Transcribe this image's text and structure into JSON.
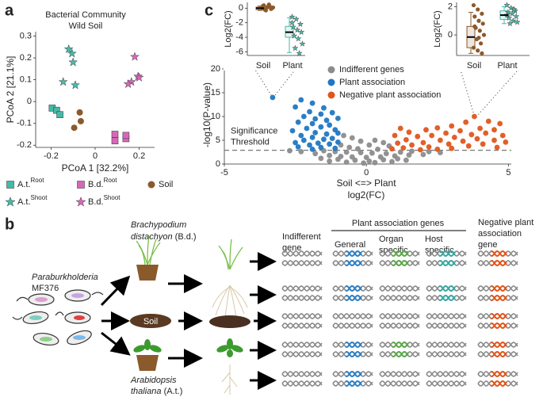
{
  "panel_labels": [
    "a",
    "b",
    "c"
  ],
  "chart_data": [
    {
      "type": "scatter",
      "title": "Bacterial Community",
      "subtitle": "Wild Soil",
      "x_label": "PCoA 1 [32.2%]",
      "y_label": "PCoA 2 [21.1%]",
      "xlim": [
        -0.27,
        0.27
      ],
      "ylim": [
        -0.21,
        0.32
      ],
      "xticks": [
        -0.2,
        0,
        0.2
      ],
      "yticks": [
        -0.2,
        -0.1,
        0,
        0.1,
        0.2,
        0.3
      ],
      "series": [
        {
          "name": "A.t.",
          "name_sup": "Root",
          "marker": "square",
          "color": "#46b9a8",
          "x": [
            -0.195,
            -0.175,
            -0.16
          ],
          "values": [
            -0.03,
            -0.04,
            -0.06
          ]
        },
        {
          "name": "A.t.",
          "name_sup": "Shoot",
          "marker": "star",
          "color": "#46b9a8",
          "x": [
            -0.12,
            -0.105,
            -0.1,
            -0.145,
            -0.09
          ],
          "values": [
            0.24,
            0.22,
            0.18,
            0.09,
            0.075
          ]
        },
        {
          "name": "B.d.",
          "name_sup": "Root",
          "marker": "square",
          "color": "#d966b8",
          "x": [
            0.09,
            0.09,
            0.14,
            0.14
          ],
          "values": [
            -0.15,
            -0.18,
            -0.17,
            -0.155
          ]
        },
        {
          "name": "B.d.",
          "name_sup": "Shoot",
          "marker": "star",
          "color": "#d966b8",
          "x": [
            0.18,
            0.195,
            0.165,
            0.15,
            0.2
          ],
          "values": [
            0.205,
            0.115,
            0.09,
            0.08,
            0.11
          ]
        },
        {
          "name": "Soil",
          "marker": "circle",
          "color": "#8b5a2b",
          "x": [
            -0.07,
            -0.065,
            -0.095
          ],
          "values": [
            -0.05,
            -0.09,
            -0.12
          ]
        }
      ]
    },
    {
      "type": "scatter",
      "x_label": "log2(FC)",
      "x_sublabel": "Soil <=> Plant",
      "y_label": "-log10(P-value)",
      "xlim": [
        -5,
        5.1
      ],
      "ylim": [
        0,
        20.5
      ],
      "xticks": [
        -5,
        0,
        5
      ],
      "yticks": [
        0,
        5,
        10,
        15,
        20
      ],
      "threshold": 2.9,
      "threshold_label": [
        "Significance",
        "Threshold"
      ],
      "series": [
        {
          "name": "Indifferent genes",
          "marker": "circle",
          "color": "#8c8c8c",
          "x": [
            -0.8,
            -0.5,
            0.3,
            -0.2,
            0.6,
            -0.9,
            0.1,
            0.8,
            -0.6,
            -0.3,
            0.4,
            -1.5,
            -1.1,
            -0.7,
            -0.2,
            0.2,
            0.7,
            1.2,
            1.6,
            2.2,
            -1.8,
            -2.3,
            -1.3,
            -0.9,
            -0.5,
            0,
            0.5,
            1.0,
            1.5,
            2.0,
            -1.6,
            -1.0,
            -0.4,
            0.1,
            0.6,
            1.1,
            -0.7,
            -0.1,
            0.3,
            0.9,
            -1.3,
            1.4,
            2.6,
            -2.7
          ],
          "values": [
            6,
            5.5,
            5,
            4.8,
            4.5,
            4,
            4,
            3.8,
            3.5,
            3.2,
            3.1,
            2.8,
            2.6,
            2.5,
            2.4,
            2.3,
            2.2,
            2.5,
            2.7,
            2.6,
            2.2,
            2.6,
            1.8,
            1.6,
            1.5,
            1.4,
            1.5,
            1.7,
            1.9,
            2,
            1.2,
            1.0,
            0.8,
            0.6,
            0.9,
            1.1,
            0.4,
            0.2,
            0.3,
            0.5,
            0.6,
            0.8,
            2.4,
            2.8
          ]
        },
        {
          "name": "Plant association",
          "marker": "circle",
          "color": "#1f77c4",
          "x": [
            -3.3,
            -2.3,
            -1.9,
            -2.5,
            -1.5,
            -2.0,
            -1.6,
            -1.2,
            -2.2,
            -1.8,
            -1.4,
            -1.0,
            -2.4,
            -1.9,
            -1.3,
            -2.1,
            -1.6,
            -1.1,
            -2.6,
            -1.8,
            -1.4,
            -2.3,
            -1.0,
            -1.9,
            -1.5,
            -2.2,
            -1.2,
            -2.5,
            -1.7,
            -1.3,
            -2.0,
            -1.0,
            -2.4,
            -1.6,
            -1.1,
            -1.9
          ],
          "values": [
            14,
            13.5,
            12.8,
            12,
            11.8,
            11,
            10.5,
            10.8,
            10,
            9.5,
            9.2,
            9.6,
            8.8,
            8.5,
            8.2,
            7.5,
            7.8,
            7.2,
            7,
            6.6,
            6.3,
            6,
            6.5,
            5.6,
            5.2,
            5,
            5.4,
            4.5,
            4.4,
            4.2,
            4,
            4.6,
            3.6,
            3.5,
            3.3,
            3.1
          ]
        },
        {
          "name": "Negative plant association",
          "marker": "circle",
          "color": "#e0561b",
          "x": [
            3.8,
            4.3,
            4.7,
            3.5,
            3.0,
            2.5,
            4.0,
            4.5,
            3.3,
            2.1,
            1.2,
            1.5,
            2.8,
            3.7,
            4.2,
            4.8,
            2.3,
            1.8,
            3.1,
            1.0,
            3.9,
            4.5,
            2.6,
            1.4,
            3.4,
            2.0,
            1.1,
            4.1,
            2.9,
            1.6,
            3.6,
            2.2,
            4.6,
            1.3,
            3.0,
            0.9,
            2.5,
            1.9,
            4.9
          ],
          "values": [
            10,
            9,
            8.5,
            8.8,
            8,
            7.6,
            7.5,
            7.2,
            7,
            7.2,
            7.5,
            6.7,
            6.5,
            6.2,
            6.5,
            6,
            6,
            5.8,
            5.6,
            6,
            5.3,
            5,
            5,
            5.1,
            4.8,
            4.5,
            4.4,
            4.2,
            4.2,
            4,
            3.8,
            3.6,
            3.5,
            3.4,
            3.3,
            3.2,
            3.1,
            3.0,
            4.6
          ]
        }
      ]
    },
    {
      "type": "box",
      "y_label": "Log2(FC)",
      "ylim": [
        -6.5,
        0.8
      ],
      "yticks": [
        -6,
        -4,
        -2,
        0
      ],
      "categories": [
        "Soil",
        "Plant"
      ],
      "boxes": [
        {
          "color": "#8b5a2b",
          "marker": "circle",
          "whisker_low": -0.3,
          "q1": -0.2,
          "median": 0,
          "q3": 0.15,
          "whisker_high": 0.3,
          "points": [
            0.3,
            0.1,
            -0.1,
            0.4,
            0.2,
            0,
            -0.2,
            0.5,
            0.1,
            -0.3,
            0.2,
            0
          ]
        },
        {
          "color": "#46b9a8",
          "marker": "star",
          "whisker_low": -6.1,
          "q1": -4,
          "median": -3.3,
          "q3": -2.5,
          "whisker_high": -1.3,
          "points": [
            -1.2,
            -1.5,
            -2.2,
            -2.6,
            -3,
            -3.3,
            -3.8,
            -4.2,
            -4.9,
            -5.5,
            -6.2,
            -2.0
          ]
        }
      ]
    },
    {
      "type": "box",
      "y_label": "Log2(FC)",
      "ylim": [
        -1.45,
        2.3
      ],
      "yticks": [
        0,
        2
      ],
      "categories": [
        "Soil",
        "Plant"
      ],
      "boxes": [
        {
          "color": "#8b5a2b",
          "marker": "circle",
          "whisker_low": -1.3,
          "q1": -0.9,
          "median": -0.15,
          "q3": 0.6,
          "whisker_high": 1.6,
          "points": [
            2.1,
            1.8,
            1.5,
            1.3,
            1.0,
            0.8,
            0.5,
            0.3,
            0,
            -0.3,
            -0.6,
            -0.9,
            -1.1,
            -1.3,
            0.6,
            -0.2
          ]
        },
        {
          "color": "#46b9a8",
          "marker": "star",
          "whisker_low": 0.8,
          "q1": 1.1,
          "median": 1.4,
          "q3": 1.7,
          "whisker_high": 2.0,
          "points": [
            2.1,
            1.9,
            1.7,
            1.6,
            1.5,
            1.3,
            1.2,
            1.0,
            0.9,
            0.8,
            1.8,
            1.4
          ]
        }
      ]
    }
  ],
  "diagram": {
    "bd_species_1": "Brachypodium",
    "bd_species_2": "distachyon",
    "bd_abbr": "(B.d.)",
    "bacterium_1": "Paraburkholderia",
    "bacterium_2": "MF376",
    "soil": "Soil",
    "at_species_1": "Arabidopsis",
    "at_species_2": "thaliana",
    "at_abbr": "(A.t.)",
    "col_indifferent": [
      "Indifferent",
      "gene"
    ],
    "group_header": "Plant association genes",
    "col_general": "General",
    "col_organ": [
      "Organ",
      "specific"
    ],
    "col_host": [
      "Host",
      "specific"
    ],
    "col_negative": [
      "Negative plant",
      "association",
      "gene"
    ]
  }
}
